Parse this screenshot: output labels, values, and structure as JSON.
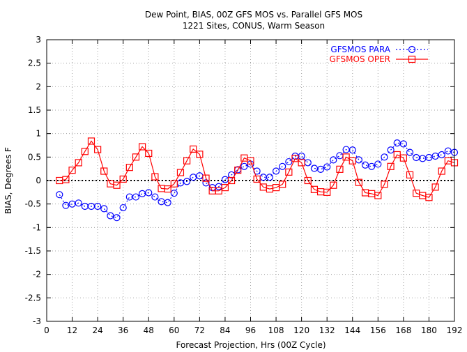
{
  "chart_data": {
    "type": "line",
    "title": "Dew Point, BIAS, 00Z GFS MOS vs. Parallel GFS MOS",
    "subtitle": "1221 Sites, CONUS, Warm Season",
    "xlabel": "Forecast Projection, Hrs (00Z Cycle)",
    "ylabel": "BIAS, Degrees F",
    "xlim": [
      0,
      192
    ],
    "ylim": [
      -3,
      3
    ],
    "x_ticks": [
      0,
      12,
      24,
      36,
      48,
      60,
      72,
      84,
      96,
      108,
      120,
      132,
      144,
      156,
      168,
      180,
      192
    ],
    "y_ticks": [
      -3,
      -2.5,
      -2,
      -1.5,
      -1,
      -0.5,
      0,
      0.5,
      1,
      1.5,
      2,
      2.5,
      3
    ],
    "grid": true,
    "legend_position": "top-right",
    "zero_line": true,
    "series": [
      {
        "name": "GFSMOS PARA",
        "color": "#0000ff",
        "line_style": "dotted",
        "marker": "circle",
        "x": [
          6,
          9,
          12,
          15,
          18,
          21,
          24,
          27,
          30,
          33,
          36,
          39,
          42,
          45,
          48,
          51,
          54,
          57,
          60,
          63,
          66,
          69,
          72,
          75,
          78,
          81,
          84,
          87,
          90,
          93,
          96,
          99,
          102,
          105,
          108,
          111,
          114,
          117,
          120,
          123,
          126,
          129,
          132,
          135,
          138,
          141,
          144,
          147,
          150,
          153,
          156,
          159,
          162,
          165,
          168,
          171,
          174,
          177,
          180,
          183,
          186,
          189,
          192
        ],
        "values": [
          -0.3,
          -0.53,
          -0.5,
          -0.48,
          -0.55,
          -0.55,
          -0.55,
          -0.6,
          -0.75,
          -0.79,
          -0.58,
          -0.35,
          -0.35,
          -0.28,
          -0.26,
          -0.35,
          -0.45,
          -0.47,
          -0.27,
          -0.05,
          -0.02,
          0.07,
          0.1,
          -0.05,
          -0.15,
          -0.13,
          0.02,
          0.12,
          0.23,
          0.3,
          0.35,
          0.2,
          0.07,
          0.07,
          0.2,
          0.3,
          0.4,
          0.52,
          0.52,
          0.38,
          0.26,
          0.24,
          0.29,
          0.44,
          0.53,
          0.66,
          0.65,
          0.44,
          0.33,
          0.3,
          0.35,
          0.5,
          0.65,
          0.8,
          0.78,
          0.6,
          0.49,
          0.47,
          0.49,
          0.52,
          0.55,
          0.63,
          0.6
        ]
      },
      {
        "name": "GFSMOS OPER",
        "color": "#ff0000",
        "line_style": "solid",
        "marker": "square",
        "x": [
          6,
          9,
          12,
          15,
          18,
          21,
          24,
          27,
          30,
          33,
          36,
          39,
          42,
          45,
          48,
          51,
          54,
          57,
          60,
          63,
          66,
          69,
          72,
          75,
          78,
          81,
          84,
          87,
          90,
          93,
          96,
          99,
          102,
          105,
          108,
          111,
          114,
          117,
          120,
          123,
          126,
          129,
          132,
          135,
          138,
          141,
          144,
          147,
          150,
          153,
          156,
          159,
          162,
          165,
          168,
          171,
          174,
          177,
          180,
          183,
          186,
          189,
          192
        ],
        "values": [
          0.0,
          0.02,
          0.22,
          0.38,
          0.62,
          0.84,
          0.66,
          0.2,
          -0.07,
          -0.1,
          0.03,
          0.28,
          0.5,
          0.72,
          0.58,
          0.08,
          -0.17,
          -0.18,
          -0.07,
          0.17,
          0.42,
          0.67,
          0.56,
          0.05,
          -0.22,
          -0.22,
          -0.15,
          0.0,
          0.22,
          0.48,
          0.42,
          0.03,
          -0.14,
          -0.18,
          -0.15,
          -0.08,
          0.18,
          0.47,
          0.38,
          0.0,
          -0.19,
          -0.24,
          -0.25,
          -0.1,
          0.24,
          0.5,
          0.42,
          -0.04,
          -0.26,
          -0.28,
          -0.32,
          -0.08,
          0.3,
          0.55,
          0.48,
          0.12,
          -0.27,
          -0.32,
          -0.36,
          -0.14,
          0.2,
          0.42,
          0.38
        ]
      }
    ]
  }
}
